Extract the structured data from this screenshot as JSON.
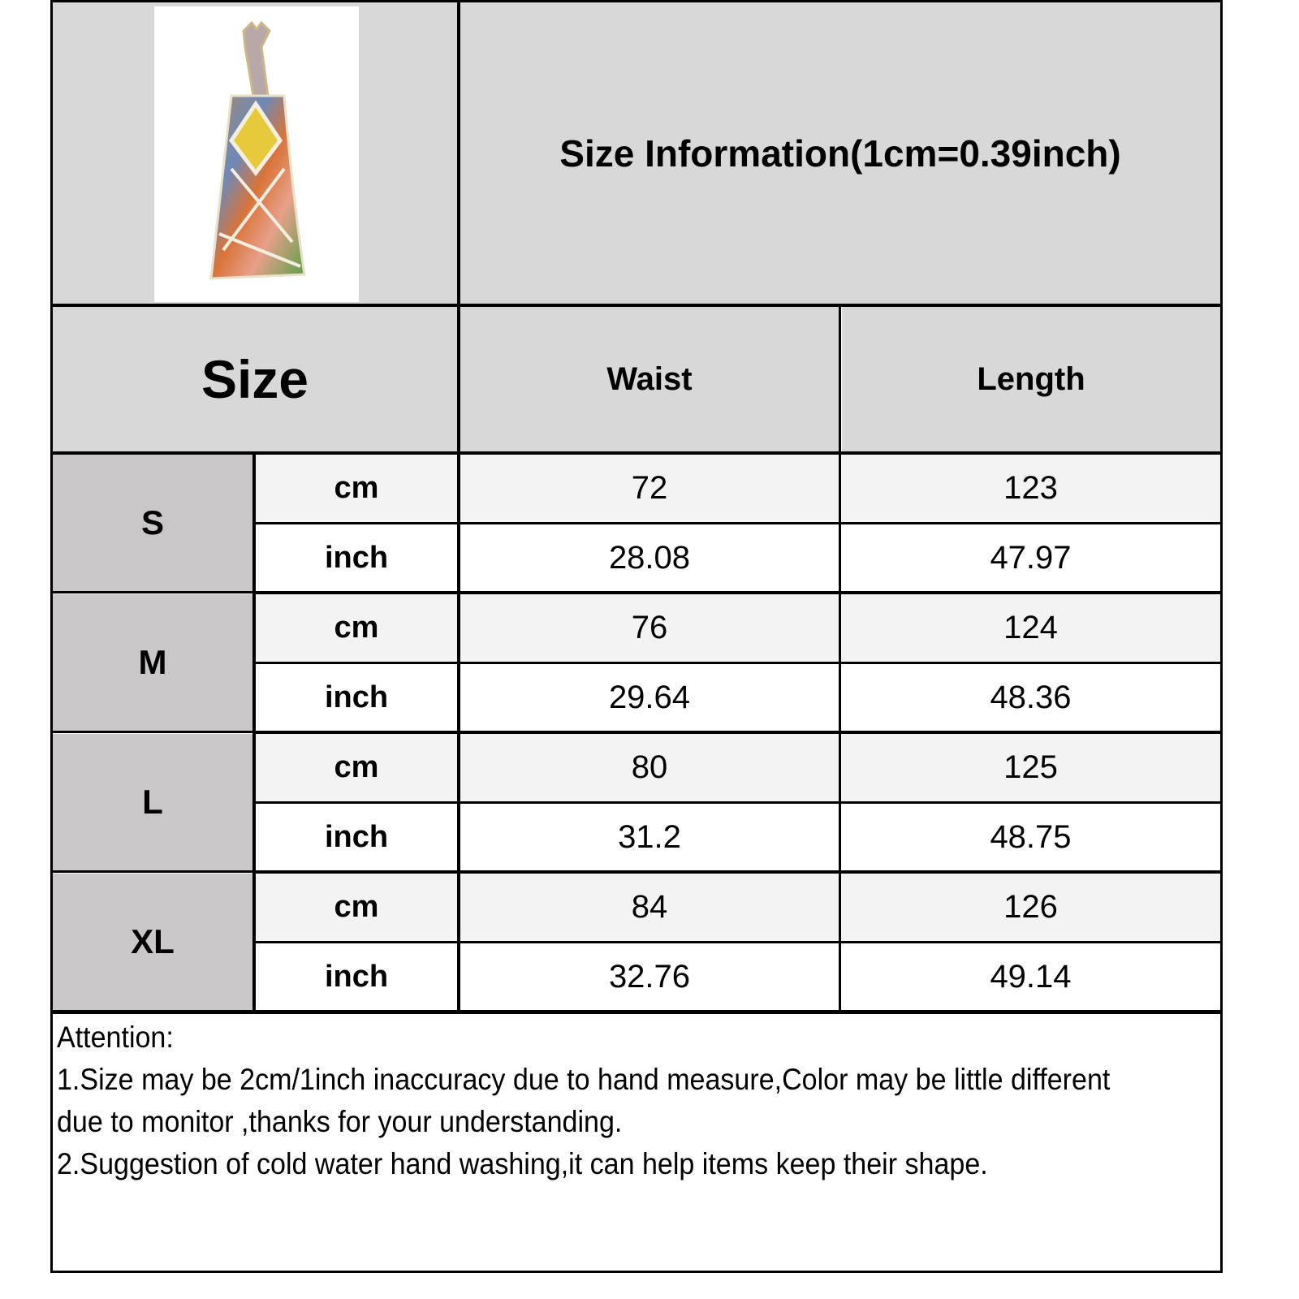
{
  "title": "Size Information(1cm=0.39inch)",
  "product_image": {
    "icon": "dress-photo",
    "alt": "patterned halter maxi dress"
  },
  "headers": {
    "size": "Size",
    "waist": "Waist",
    "length": "Length"
  },
  "units": {
    "cm": "cm",
    "inch": "inch"
  },
  "rows": [
    {
      "size": "S",
      "cm": {
        "waist": "72",
        "length": "123"
      },
      "inch": {
        "waist": "28.08",
        "length": "47.97"
      }
    },
    {
      "size": "M",
      "cm": {
        "waist": "76",
        "length": "124"
      },
      "inch": {
        "waist": "29.64",
        "length": "48.36"
      }
    },
    {
      "size": "L",
      "cm": {
        "waist": "80",
        "length": "125"
      },
      "inch": {
        "waist": "31.2",
        "length": "48.75"
      }
    },
    {
      "size": "XL",
      "cm": {
        "waist": "84",
        "length": "126"
      },
      "inch": {
        "waist": "32.76",
        "length": "49.14"
      }
    }
  ],
  "attention": {
    "heading": "Attention:",
    "note1": "1.Size may be 2cm/1inch inaccuracy due to hand measure,Color may be little different due to monitor ,thanks  for your understanding.",
    "note2": "2.Suggestion of cold water hand washing,it can help items keep their shape."
  },
  "colors": {
    "header_bg": "#d9d8d9",
    "size_bg": "#c9c7c8",
    "cm_row_bg": "#f3f3f3",
    "inch_row_bg": "#ffffff"
  }
}
